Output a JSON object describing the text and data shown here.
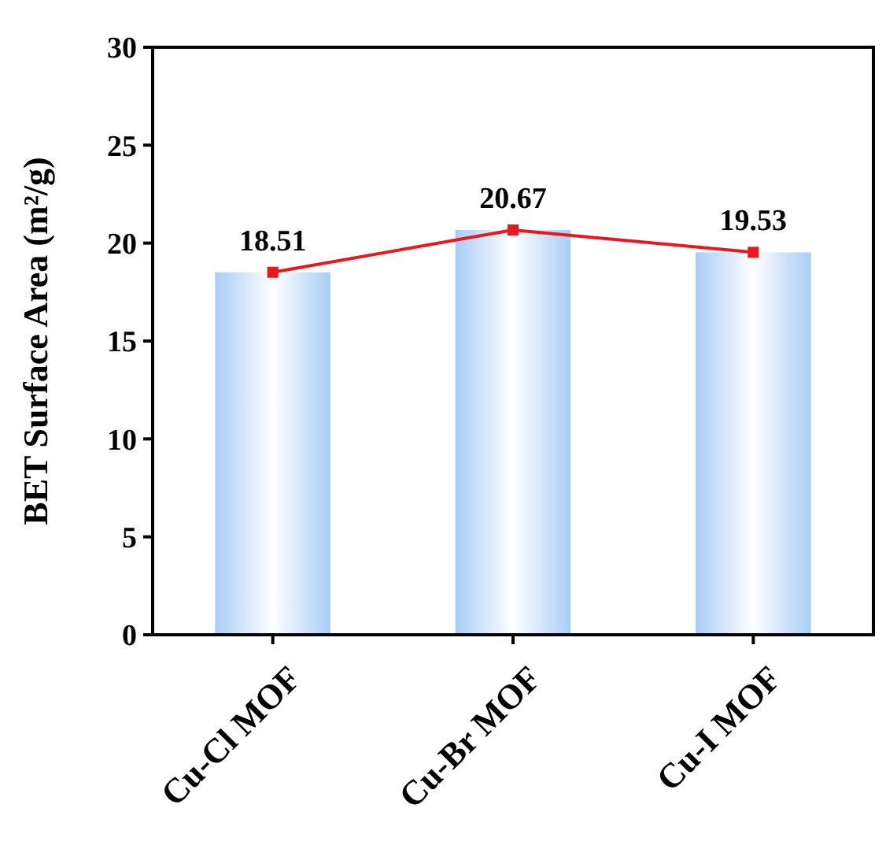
{
  "chart_data": {
    "type": "bar",
    "ylabel": "BET Surface Area (m²/g)",
    "categories": [
      "Cu-Cl MOF",
      "Cu-Br MOF",
      "Cu-I MOF"
    ],
    "series": [
      {
        "color": "#a9cdf5",
        "values": [
          18.51,
          20.67,
          19.53
        ]
      },
      {
        "type": "line",
        "color": "#e8191c",
        "values": [
          18.51,
          20.67,
          19.53
        ],
        "marker": "square",
        "data_labels": true
      }
    ],
    "ylim": [
      0,
      30
    ],
    "yticks": [
      0,
      5,
      10,
      15,
      20,
      25,
      30
    ]
  }
}
